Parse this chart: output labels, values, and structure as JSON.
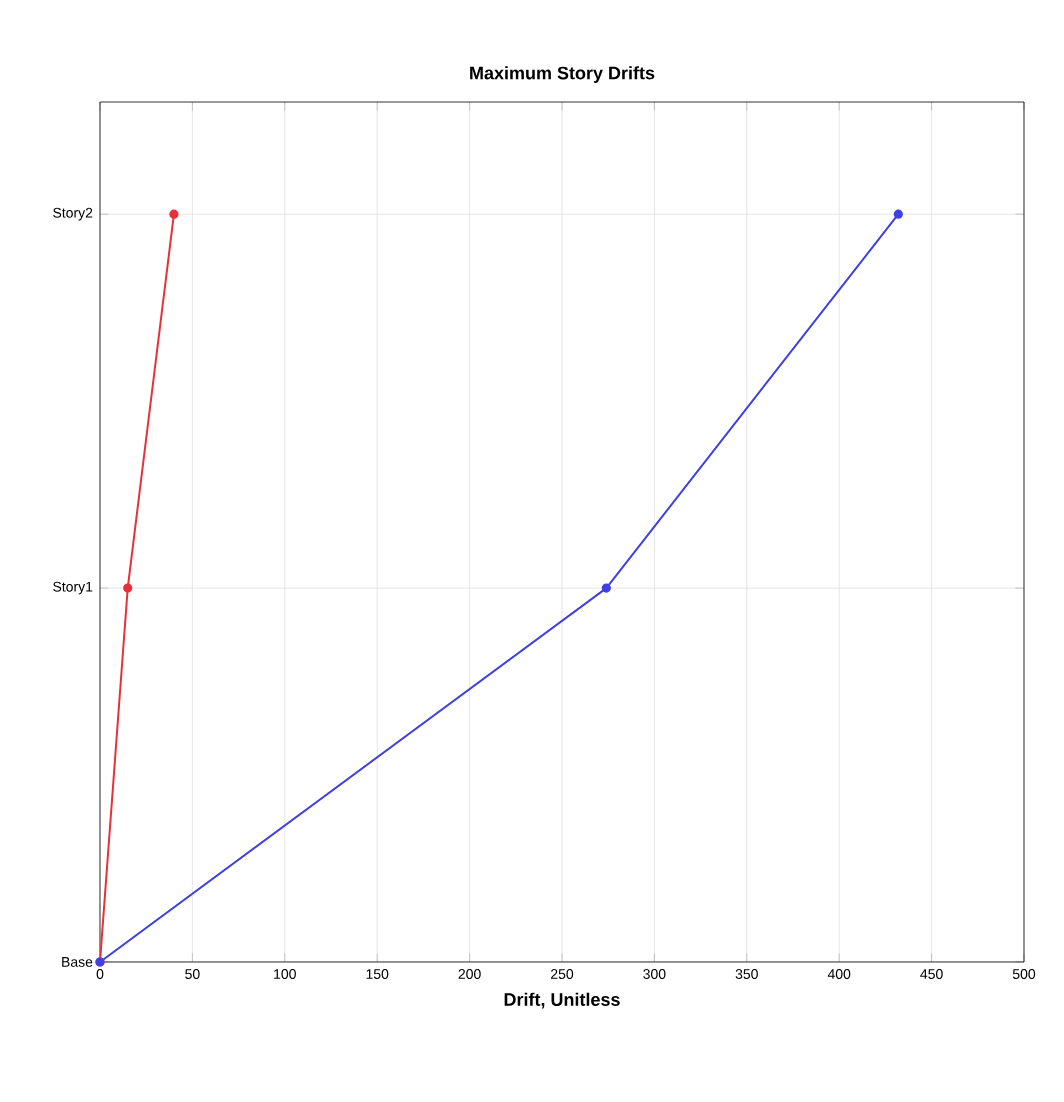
{
  "chart_data": {
    "type": "line",
    "title": "Maximum Story Drifts",
    "xlabel": "Drift, Unitless",
    "orientation": "horizontal",
    "categories": [
      "Story2",
      "Story1",
      "Base"
    ],
    "xlim": [
      0,
      500
    ],
    "xticks": [
      0,
      50,
      100,
      150,
      200,
      250,
      300,
      350,
      400,
      450,
      500
    ],
    "series": [
      {
        "color": "#e8303a",
        "values": [
          40,
          15,
          0
        ]
      },
      {
        "color": "#4040e0",
        "values": [
          432,
          274,
          0
        ]
      }
    ],
    "grid": true,
    "marker": "circle",
    "line_style": "solid"
  }
}
